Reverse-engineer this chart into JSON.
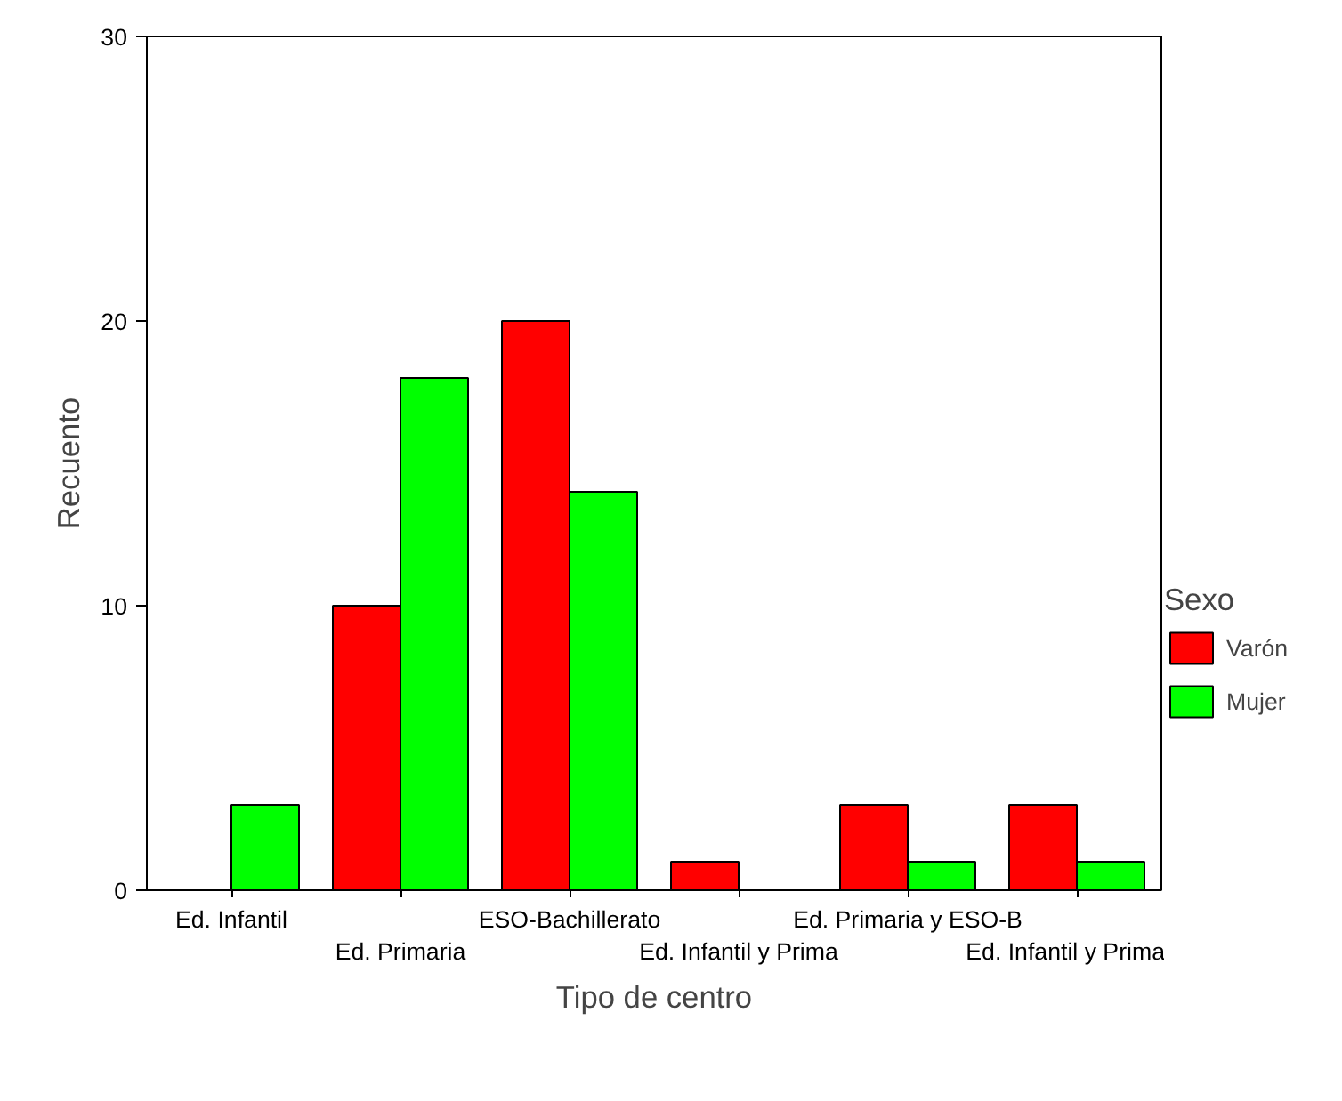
{
  "chart_data": {
    "type": "bar",
    "xlabel": "Tipo de centro",
    "ylabel": "Recuento",
    "legend_title": "Sexo",
    "legend": "right",
    "categories": [
      "Ed. Infantil",
      "Ed. Primaria",
      "ESO-Bachillerato",
      "Ed. Infantil y Prima",
      "Ed. Primaria y ESO-B",
      "Ed. Infantil y Prima"
    ],
    "series": [
      {
        "name": "Varón",
        "color": "#ff0000",
        "values": [
          null,
          10,
          20,
          1,
          3,
          3
        ]
      },
      {
        "name": "Mujer",
        "color": "#00ff00",
        "values": [
          3,
          18,
          14,
          null,
          1,
          1
        ]
      }
    ],
    "ylim": [
      0,
      30
    ],
    "yticks": [
      0,
      10,
      20,
      30
    ],
    "grid": false
  }
}
